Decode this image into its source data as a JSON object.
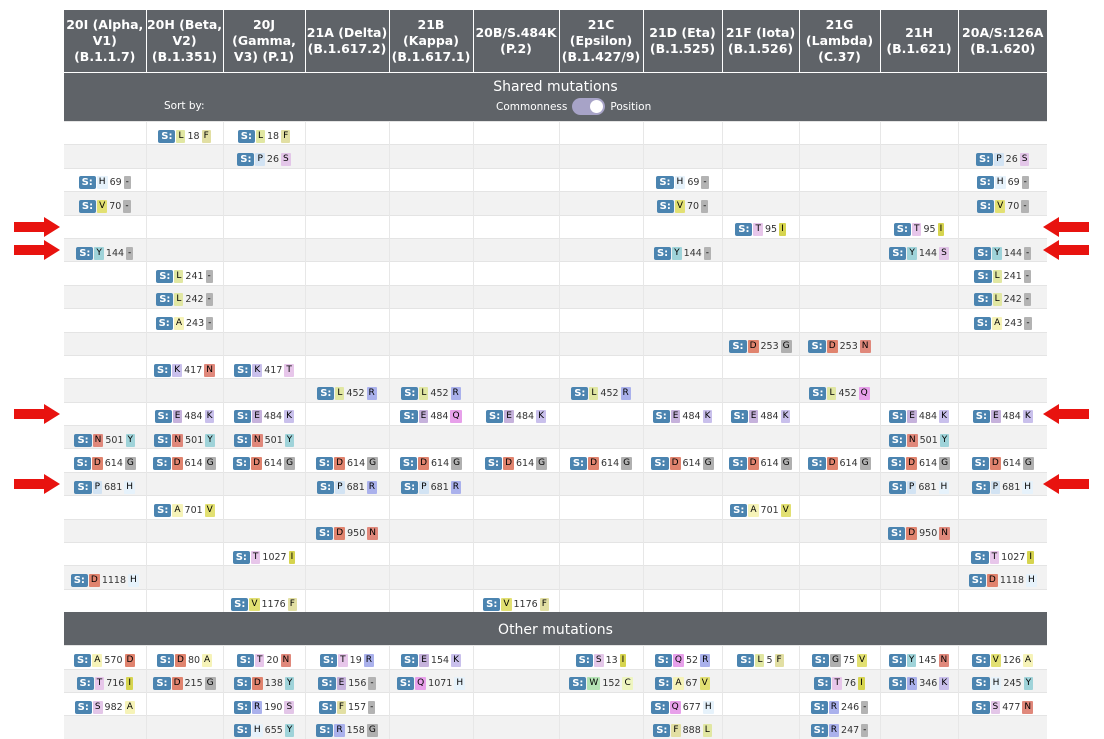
{
  "columns": [
    "20I (Alpha, V1) (B.1.1.7)",
    "20H (Beta, V2) (B.1.351)",
    "20J (Gamma, V3) (P.1)",
    "21A (Delta) (B.1.617.2)",
    "21B (Kappa) (B.1.617.1)",
    "20B/S.484K (P.2)",
    "21C (Epsilon) (B.1.427/9)",
    "21D (Eta) (B.1.525)",
    "21F (Iota) (B.1.526)",
    "21G (Lambda) (C.37)",
    "21H (B.1.621)",
    "20A/S:126A (B.1.620)"
  ],
  "shared_title": "Shared mutations",
  "sort_label": "Sort by:",
  "toggle": {
    "left": "Commonness",
    "right": "Position",
    "selected": "Position"
  },
  "other_title": "Other mutations",
  "gene_prefix": "S:",
  "residue_colors": {
    "A": "#f6f3b8",
    "C": "#eef5bf",
    "D": "#e0836e",
    "E": "#c6b2dc",
    "F": "#e2dfa3",
    "G": "#b0b0b0",
    "H": "#e6f2fb",
    "I": "#d6d44f",
    "K": "#c9c0ec",
    "L": "#e1e7a2",
    "M": "#dfdfdf",
    "N": "#e0887b",
    "P": "#d2e3f3",
    "Q": "#e7a0ea",
    "R": "#aab1ec",
    "S": "#e3c6e8",
    "T": "#e7c6ea",
    "V": "#e2e072",
    "W": "#b4e3b4",
    "Y": "#9fd3d9",
    "-": "#b3b3b3"
  },
  "shared_rows": [
    [
      null,
      [
        "L",
        "18",
        "F"
      ],
      [
        "L",
        "18",
        "F"
      ],
      null,
      null,
      null,
      null,
      null,
      null,
      null,
      null,
      null
    ],
    [
      null,
      null,
      [
        "P",
        "26",
        "S"
      ],
      null,
      null,
      null,
      null,
      null,
      null,
      null,
      null,
      [
        "P",
        "26",
        "S"
      ]
    ],
    [
      [
        "H",
        "69",
        "-"
      ],
      null,
      null,
      null,
      null,
      null,
      null,
      [
        "H",
        "69",
        "-"
      ],
      null,
      null,
      null,
      [
        "H",
        "69",
        "-"
      ]
    ],
    [
      [
        "V",
        "70",
        "-"
      ],
      null,
      null,
      null,
      null,
      null,
      null,
      [
        "V",
        "70",
        "-"
      ],
      null,
      null,
      null,
      [
        "V",
        "70",
        "-"
      ]
    ],
    [
      null,
      null,
      null,
      null,
      null,
      null,
      null,
      null,
      [
        "T",
        "95",
        "I"
      ],
      null,
      [
        "T",
        "95",
        "I"
      ],
      null
    ],
    [
      [
        "Y",
        "144",
        "-"
      ],
      null,
      null,
      null,
      null,
      null,
      null,
      [
        "Y",
        "144",
        "-"
      ],
      null,
      null,
      [
        "Y",
        "144",
        "S"
      ],
      [
        "Y",
        "144",
        "-"
      ]
    ],
    [
      null,
      [
        "L",
        "241",
        "-"
      ],
      null,
      null,
      null,
      null,
      null,
      null,
      null,
      null,
      null,
      [
        "L",
        "241",
        "-"
      ]
    ],
    [
      null,
      [
        "L",
        "242",
        "-"
      ],
      null,
      null,
      null,
      null,
      null,
      null,
      null,
      null,
      null,
      [
        "L",
        "242",
        "-"
      ]
    ],
    [
      null,
      [
        "A",
        "243",
        "-"
      ],
      null,
      null,
      null,
      null,
      null,
      null,
      null,
      null,
      null,
      [
        "A",
        "243",
        "-"
      ]
    ],
    [
      null,
      null,
      null,
      null,
      null,
      null,
      null,
      null,
      [
        "D",
        "253",
        "G"
      ],
      [
        "D",
        "253",
        "N"
      ],
      null,
      null
    ],
    [
      null,
      [
        "K",
        "417",
        "N"
      ],
      [
        "K",
        "417",
        "T"
      ],
      null,
      null,
      null,
      null,
      null,
      null,
      null,
      null,
      null
    ],
    [
      null,
      null,
      null,
      [
        "L",
        "452",
        "R"
      ],
      [
        "L",
        "452",
        "R"
      ],
      null,
      [
        "L",
        "452",
        "R"
      ],
      null,
      null,
      [
        "L",
        "452",
        "Q"
      ],
      null,
      null
    ],
    [
      null,
      [
        "E",
        "484",
        "K"
      ],
      [
        "E",
        "484",
        "K"
      ],
      null,
      [
        "E",
        "484",
        "Q"
      ],
      [
        "E",
        "484",
        "K"
      ],
      null,
      [
        "E",
        "484",
        "K"
      ],
      [
        "E",
        "484",
        "K"
      ],
      null,
      [
        "E",
        "484",
        "K"
      ],
      [
        "E",
        "484",
        "K"
      ]
    ],
    [
      [
        "N",
        "501",
        "Y"
      ],
      [
        "N",
        "501",
        "Y"
      ],
      [
        "N",
        "501",
        "Y"
      ],
      null,
      null,
      null,
      null,
      null,
      null,
      null,
      [
        "N",
        "501",
        "Y"
      ],
      null
    ],
    [
      [
        "D",
        "614",
        "G"
      ],
      [
        "D",
        "614",
        "G"
      ],
      [
        "D",
        "614",
        "G"
      ],
      [
        "D",
        "614",
        "G"
      ],
      [
        "D",
        "614",
        "G"
      ],
      [
        "D",
        "614",
        "G"
      ],
      [
        "D",
        "614",
        "G"
      ],
      [
        "D",
        "614",
        "G"
      ],
      [
        "D",
        "614",
        "G"
      ],
      [
        "D",
        "614",
        "G"
      ],
      [
        "D",
        "614",
        "G"
      ],
      [
        "D",
        "614",
        "G"
      ]
    ],
    [
      [
        "P",
        "681",
        "H"
      ],
      null,
      null,
      [
        "P",
        "681",
        "R"
      ],
      [
        "P",
        "681",
        "R"
      ],
      null,
      null,
      null,
      null,
      null,
      [
        "P",
        "681",
        "H"
      ],
      [
        "P",
        "681",
        "H"
      ]
    ],
    [
      null,
      [
        "A",
        "701",
        "V"
      ],
      null,
      null,
      null,
      null,
      null,
      null,
      [
        "A",
        "701",
        "V"
      ],
      null,
      null,
      null
    ],
    [
      null,
      null,
      null,
      [
        "D",
        "950",
        "N"
      ],
      null,
      null,
      null,
      null,
      null,
      null,
      [
        "D",
        "950",
        "N"
      ],
      null
    ],
    [
      null,
      null,
      [
        "T",
        "1027",
        "I"
      ],
      null,
      null,
      null,
      null,
      null,
      null,
      null,
      null,
      [
        "T",
        "1027",
        "I"
      ]
    ],
    [
      [
        "D",
        "1118",
        "H"
      ],
      null,
      null,
      null,
      null,
      null,
      null,
      null,
      null,
      null,
      null,
      [
        "D",
        "1118",
        "H"
      ]
    ],
    [
      null,
      null,
      [
        "V",
        "1176",
        "F"
      ],
      null,
      null,
      [
        "V",
        "1176",
        "F"
      ],
      null,
      null,
      null,
      null,
      null,
      null
    ]
  ],
  "other_rows": [
    [
      [
        "A",
        "570",
        "D"
      ],
      [
        "D",
        "80",
        "A"
      ],
      [
        "T",
        "20",
        "N"
      ],
      [
        "T",
        "19",
        "R"
      ],
      [
        "E",
        "154",
        "K"
      ],
      null,
      [
        "S",
        "13",
        "I"
      ],
      [
        "Q",
        "52",
        "R"
      ],
      [
        "L",
        "5",
        "F"
      ],
      [
        "G",
        "75",
        "V"
      ],
      [
        "Y",
        "145",
        "N"
      ],
      [
        "V",
        "126",
        "A"
      ]
    ],
    [
      [
        "T",
        "716",
        "I"
      ],
      [
        "D",
        "215",
        "G"
      ],
      [
        "D",
        "138",
        "Y"
      ],
      [
        "E",
        "156",
        "-"
      ],
      [
        "Q",
        "1071",
        "H"
      ],
      null,
      [
        "W",
        "152",
        "C"
      ],
      [
        "A",
        "67",
        "V"
      ],
      null,
      [
        "T",
        "76",
        "I"
      ],
      [
        "R",
        "346",
        "K"
      ],
      [
        "H",
        "245",
        "Y"
      ]
    ],
    [
      [
        "S",
        "982",
        "A"
      ],
      null,
      [
        "R",
        "190",
        "S"
      ],
      [
        "F",
        "157",
        "-"
      ],
      null,
      null,
      null,
      [
        "Q",
        "677",
        "H"
      ],
      null,
      [
        "R",
        "246",
        "-"
      ],
      null,
      [
        "S",
        "477",
        "N"
      ]
    ],
    [
      null,
      null,
      [
        "H",
        "655",
        "Y"
      ],
      [
        "R",
        "158",
        "G"
      ],
      null,
      null,
      null,
      [
        "F",
        "888",
        "L"
      ],
      null,
      [
        "R",
        "247",
        "-"
      ],
      null,
      null
    ]
  ],
  "arrows": {
    "rows": [
      4,
      5,
      12,
      15
    ],
    "left": [
      true,
      true,
      true,
      true
    ],
    "right": [
      true,
      true,
      true,
      true
    ],
    "color": "#e8130f"
  }
}
